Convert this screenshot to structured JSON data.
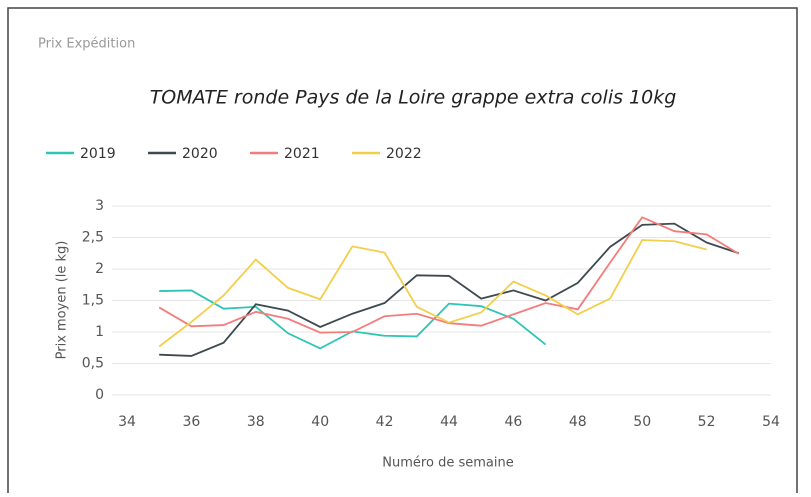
{
  "panel_title": "Prix Expédition",
  "chart_data": {
    "type": "line",
    "title": "TOMATE ronde Pays de la Loire grappe extra colis 10kg",
    "x_label": "Numéro de semaine",
    "y_label": "Prix moyen  (le kg)",
    "x": [
      35,
      36,
      37,
      38,
      39,
      40,
      41,
      42,
      43,
      44,
      45,
      46,
      47,
      48,
      49,
      50,
      51,
      52,
      53
    ],
    "series": [
      {
        "name": "2019",
        "color": "#2ec4b6",
        "values": [
          1.65,
          1.66,
          1.37,
          1.4,
          0.98,
          0.74,
          1.01,
          0.94,
          0.93,
          1.45,
          1.41,
          1.21,
          0.8,
          null,
          null,
          null,
          null,
          null,
          null
        ]
      },
      {
        "name": "2020",
        "color": "#3d4a4f",
        "values": [
          0.64,
          0.62,
          0.83,
          1.44,
          1.34,
          1.08,
          1.29,
          1.46,
          1.9,
          1.89,
          1.53,
          1.66,
          1.5,
          1.78,
          2.35,
          2.7,
          2.72,
          2.42,
          2.25
        ]
      },
      {
        "name": "2021",
        "color": "#f47c7c",
        "values": [
          1.39,
          1.09,
          1.11,
          1.32,
          1.21,
          0.99,
          1.0,
          1.25,
          1.29,
          1.14,
          1.1,
          1.28,
          1.46,
          1.36,
          2.1,
          2.82,
          2.6,
          2.55,
          2.24
        ]
      },
      {
        "name": "2022",
        "color": "#f2cf4a",
        "values": [
          0.77,
          1.16,
          1.58,
          2.15,
          1.7,
          1.52,
          2.36,
          2.26,
          1.4,
          1.15,
          1.31,
          1.8,
          1.58,
          1.28,
          1.53,
          2.46,
          2.44,
          2.31,
          null
        ]
      }
    ],
    "xlim": [
      34,
      54
    ],
    "xticks": [
      34,
      36,
      38,
      40,
      42,
      44,
      46,
      48,
      50,
      52,
      54
    ],
    "ylim": [
      0,
      3
    ],
    "yticks": [
      0,
      {
        "value": 0.5,
        "label": "0,5"
      },
      1,
      {
        "value": 1.5,
        "label": "1,5"
      },
      2,
      {
        "value": 2.5,
        "label": "2,5"
      },
      3
    ],
    "grid": true,
    "legend": "top-left"
  }
}
